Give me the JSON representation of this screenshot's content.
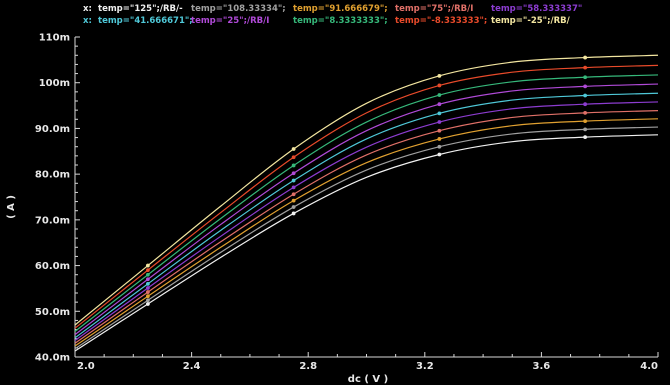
{
  "chart_data": {
    "type": "line",
    "title": "",
    "xlabel": "dc ( V )",
    "ylabel": "( A )",
    "xlim": [
      2.0,
      4.0
    ],
    "ylim": [
      40.0,
      110.0
    ],
    "x_ticks": [
      2.0,
      2.4,
      2.8,
      3.2,
      3.6,
      4.0
    ],
    "x_tick_labels": [
      "2.0",
      "2.4",
      "2.8",
      "3.2",
      "3.6",
      "4.0"
    ],
    "y_ticks": [
      40,
      50,
      60,
      70,
      80,
      90,
      100,
      110
    ],
    "y_tick_labels": [
      "40.0m",
      "50.0m",
      "60.0m",
      "70.0m",
      "80.0m",
      "90.0m",
      "100m",
      "110m"
    ],
    "grid": false,
    "legend_position": "top",
    "x": [
      2.0,
      2.25,
      2.5,
      2.75,
      3.0,
      3.25,
      3.5,
      3.75,
      4.0
    ],
    "series": [
      {
        "name": "temp=\"-25\";/RB/",
        "color": "#f3e6a0",
        "values": [
          47.0,
          60.0,
          73.0,
          85.5,
          95.5,
          101.5,
          104.5,
          105.5,
          106.0
        ],
        "marker": "circle"
      },
      {
        "name": "temp=\"-8.333333\";",
        "color": "#e84a2a",
        "values": [
          46.3,
          59.0,
          71.6,
          83.7,
          93.4,
          99.4,
          102.3,
          103.3,
          103.8
        ],
        "marker": "circle"
      },
      {
        "name": "temp=\"8.3333333\";",
        "color": "#36b87a",
        "values": [
          45.6,
          58.0,
          70.3,
          81.9,
          91.4,
          97.3,
          100.2,
          101.2,
          101.7
        ],
        "marker": "circle"
      },
      {
        "name": "temp=\"25\";/RB/I",
        "color": "#b04ad8",
        "values": [
          44.9,
          57.0,
          69.0,
          80.2,
          89.5,
          95.3,
          98.2,
          99.2,
          99.7
        ],
        "marker": "circle"
      },
      {
        "name": "temp=\"41.666671\";",
        "color": "#4fc8d8",
        "values": [
          44.2,
          56.0,
          67.7,
          78.6,
          87.7,
          93.3,
          96.2,
          97.2,
          97.7
        ],
        "marker": "circle"
      },
      {
        "name": "temp=\"58.333337\"",
        "color": "#8c3cd0",
        "values": [
          43.6,
          55.1,
          66.4,
          77.1,
          85.9,
          91.4,
          94.3,
          95.3,
          95.8
        ],
        "marker": "circle"
      },
      {
        "name": "temp=\"75\";/RB/I",
        "color": "#e07068",
        "values": [
          43.0,
          54.2,
          65.2,
          75.6,
          84.2,
          89.5,
          92.4,
          93.4,
          93.9
        ],
        "marker": "circle"
      },
      {
        "name": "temp=\"91.666679\";",
        "color": "#e0a030",
        "values": [
          42.4,
          53.3,
          64.0,
          74.2,
          82.5,
          87.7,
          90.6,
          91.6,
          92.1
        ],
        "marker": "circle"
      },
      {
        "name": "temp=\"108.33334\";",
        "color": "#a0a0a0",
        "values": [
          41.8,
          52.4,
          62.9,
          72.8,
          80.9,
          86.0,
          88.8,
          89.8,
          90.3
        ],
        "marker": "circle"
      },
      {
        "name": "temp=\"125\";/RB/-",
        "color": "#f0f0f0",
        "values": [
          41.3,
          51.6,
          61.8,
          71.4,
          79.3,
          84.3,
          87.1,
          88.1,
          88.6
        ],
        "marker": "circle"
      }
    ],
    "legend_rows": [
      {
        "prefix": "x:",
        "prefix_color": "#f0f0f0",
        "items": [
          {
            "label": "temp=\"125\";/RB/-",
            "color": "#f0f0f0"
          },
          {
            "label": "temp=\"108.33334\";",
            "color": "#a0a0a0"
          },
          {
            "label": "temp=\"91.666679\";",
            "color": "#e0a030"
          },
          {
            "label": "temp=\"75\";/RB/I",
            "color": "#e07068"
          },
          {
            "label": "temp=\"58.333337\"",
            "color": "#8c3cd0"
          }
        ]
      },
      {
        "prefix": "x:",
        "prefix_color": "#4fc8d8",
        "items": [
          {
            "label": "temp=\"41.666671\";",
            "color": "#4fc8d8"
          },
          {
            "label": "temp=\"25\";/RB/I",
            "color": "#b04ad8"
          },
          {
            "label": "temp=\"8.3333333\";",
            "color": "#36b87a"
          },
          {
            "label": "temp=\"-8.333333\";",
            "color": "#e84a2a"
          },
          {
            "label": "temp=\"-25\";/RB/",
            "color": "#f3e6a0"
          }
        ]
      }
    ],
    "colors": {
      "background": "#000000",
      "axis": "#d8d8d8",
      "text": "#e8e8e8"
    }
  }
}
